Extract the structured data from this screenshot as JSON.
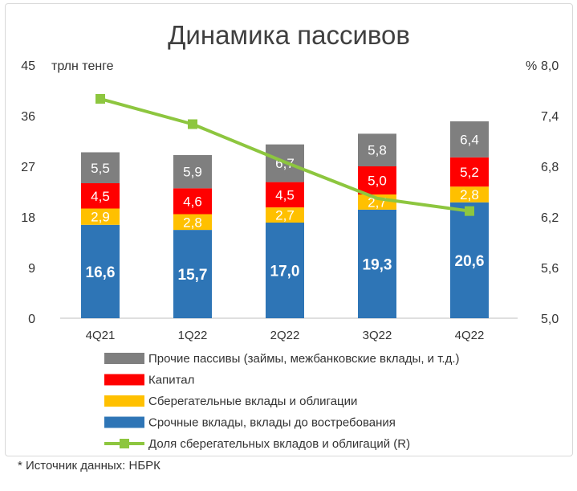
{
  "title": "Динамика пассивов",
  "source_note": "* Источник данных: НБРК",
  "chart_data": {
    "type": "bar",
    "stacked": true,
    "categories": [
      "4Q21",
      "1Q22",
      "2Q22",
      "3Q22",
      "4Q22"
    ],
    "ylabel_left": "трлн тенге",
    "ylabel_right": "%",
    "ylim_left": [
      0,
      45
    ],
    "yticks_left": [
      "0",
      "9",
      "18",
      "27",
      "36",
      "45"
    ],
    "ylim_right": [
      5.0,
      8.0
    ],
    "yticks_right": [
      "5,0",
      "5,6",
      "6,2",
      "6,8",
      "7,4",
      "8,0"
    ],
    "grid": false,
    "legend_position": "bottom",
    "series": [
      {
        "name": "Срочные вклады, вклады до востребования",
        "color": "#2e75b6",
        "values": [
          16.6,
          15.7,
          17.0,
          19.3,
          20.6
        ],
        "labels": [
          "16,6",
          "15,7",
          "17,0",
          "19,3",
          "20,6"
        ]
      },
      {
        "name": "Сберегательные вклады и облигации",
        "color": "#ffc000",
        "values": [
          2.9,
          2.8,
          2.7,
          2.7,
          2.8
        ],
        "labels": [
          "2,9",
          "2,8",
          "2,7",
          "2,7",
          "2,8"
        ]
      },
      {
        "name": "Капитал",
        "color": "#ff0000",
        "values": [
          4.5,
          4.6,
          4.5,
          5.0,
          5.2
        ],
        "labels": [
          "4,5",
          "4,6",
          "4,5",
          "5,0",
          "5,2"
        ]
      },
      {
        "name": "Прочие пассивы (займы, межбанковские вклады, и т.д.)",
        "color": "#7f7f7f",
        "values": [
          5.5,
          5.9,
          6.7,
          5.8,
          6.4
        ],
        "labels": [
          "5,5",
          "5,9",
          "6,7",
          "5,8",
          "6,4"
        ]
      }
    ],
    "line_series": {
      "name": "Доля сберегательных вкладов и облигаций (R)",
      "color": "#8dc63f",
      "axis": "right",
      "values": [
        7.6,
        7.3,
        6.85,
        6.42,
        6.27
      ]
    },
    "legend_order": [
      "Прочие пассивы (займы, межбанковские вклады, и т.д.)",
      "Капитал",
      "Сберегательные вклады и облигации",
      "Срочные вклады, вклады до востребования",
      "Доля сберегательных вкладов и облигаций (R)"
    ]
  }
}
